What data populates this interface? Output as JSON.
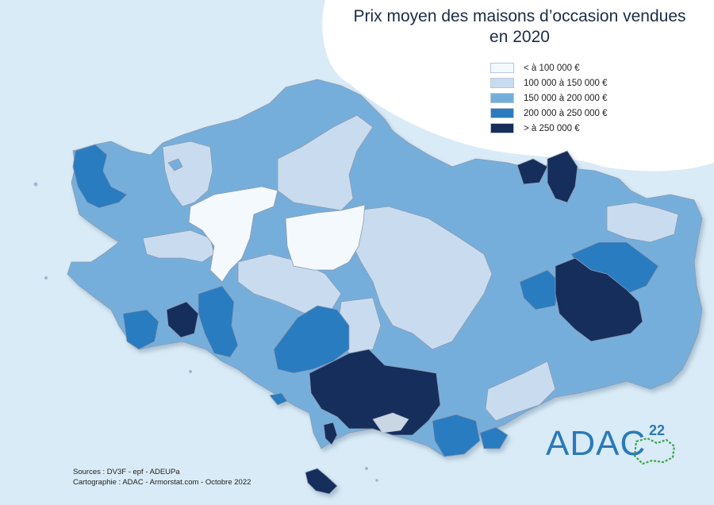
{
  "title": {
    "line1": "Prix moyen des maisons d’occasion vendues",
    "line2": "en 2020"
  },
  "legend": [
    {
      "label": "< à 100 000 €",
      "color": "#f4f9fd"
    },
    {
      "label": "100 000 à 150 000 €",
      "color": "#c9dcef"
    },
    {
      "label": "150 000 à 200 000 €",
      "color": "#76aedb"
    },
    {
      "label": "200 000 à 250 000 €",
      "color": "#2b7bc0"
    },
    {
      "label": "> à 250 000 €",
      "color": "#172e5c"
    }
  ],
  "sources": {
    "line1": "Sources : DV3F - epf - ADEUPa",
    "line2": "Cartographie : ADAC - Armorstat.com - Octobre 2022"
  },
  "logo": {
    "text": "ADAC",
    "superscript": "22"
  },
  "colors": {
    "sea": "#d9ebf6",
    "land_border": "#7b8ea3",
    "white_blob": "#ffffff"
  }
}
